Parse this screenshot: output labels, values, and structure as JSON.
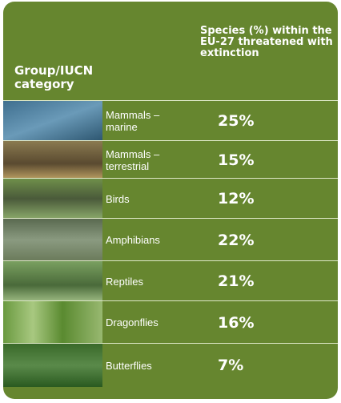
{
  "header": {
    "group_label": "Group/IUCN category",
    "value_label": "Species (%) within the EU-27 threatened with extinction"
  },
  "table": {
    "rows": [
      [
        "Mammals –\nmarine",
        "25%"
      ],
      [
        "Mammals –\nterrestrial",
        "15%"
      ],
      [
        "Birds",
        "12%"
      ],
      [
        "Amphibians",
        "22%"
      ],
      [
        "Reptiles",
        "21%"
      ],
      [
        "Dragonflies",
        "16%"
      ],
      [
        "Butterflies",
        "7%"
      ]
    ]
  }
}
